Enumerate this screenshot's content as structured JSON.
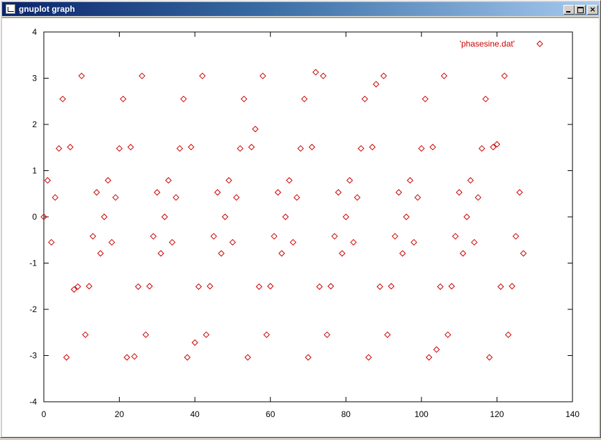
{
  "window": {
    "title": "gnuplot graph",
    "minimize_label": "",
    "maximize_label": "",
    "close_label": "×"
  },
  "colors": {
    "point": "#cc0000",
    "axis": "#000000",
    "titlebar_start": "#0a246a",
    "titlebar_end": "#a6caf0"
  },
  "chart_data": {
    "type": "scatter",
    "marker": "diamond",
    "xlim": [
      0,
      140
    ],
    "ylim": [
      -4,
      4
    ],
    "xticks": [
      0,
      20,
      40,
      60,
      80,
      100,
      120,
      140
    ],
    "yticks": [
      -4,
      -3,
      -2,
      -1,
      0,
      1,
      2,
      3,
      4
    ],
    "grid": false,
    "legend_position": "top-right",
    "series": [
      {
        "name": "'phasesine.dat'",
        "x": [
          0,
          1,
          2,
          3,
          4,
          5,
          6,
          7,
          8,
          9,
          10,
          11,
          12,
          13,
          14,
          15,
          16,
          17,
          18,
          19,
          20,
          21,
          22,
          23,
          24,
          25,
          26,
          27,
          28,
          29,
          30,
          31,
          32,
          33,
          34,
          35,
          36,
          37,
          38,
          39,
          40,
          41,
          42,
          43,
          44,
          45,
          46,
          47,
          48,
          49,
          50,
          51,
          52,
          53,
          54,
          55,
          56,
          57,
          58,
          59,
          60,
          61,
          62,
          63,
          64,
          65,
          66,
          67,
          68,
          69,
          70,
          71,
          72,
          73,
          74,
          75,
          76,
          77,
          78,
          79,
          80,
          81,
          82,
          83,
          84,
          85,
          86,
          87,
          88,
          89,
          90,
          91,
          92,
          93,
          94,
          95,
          96,
          97,
          98,
          99,
          100,
          101,
          102,
          103,
          104,
          105,
          106,
          107,
          108,
          109,
          110,
          111,
          112,
          113,
          114,
          115,
          116,
          117,
          118,
          119,
          120,
          121,
          122,
          123,
          124,
          125,
          126,
          127
        ],
        "y": [
          0,
          0.79,
          -0.55,
          0.42,
          1.48,
          2.55,
          -3.04,
          1.51,
          -1.57,
          -1.51,
          3.05,
          -2.55,
          -1.5,
          -0.42,
          0.53,
          -0.79,
          0,
          0.79,
          -0.55,
          0.42,
          1.48,
          2.55,
          -3.04,
          1.51,
          -3.02,
          -1.51,
          3.05,
          -2.55,
          -1.5,
          -0.42,
          0.53,
          -0.79,
          0,
          0.79,
          -0.55,
          0.42,
          1.48,
          2.55,
          -3.04,
          1.51,
          -2.72,
          -1.51,
          3.05,
          -2.55,
          -1.5,
          -0.42,
          0.53,
          -0.79,
          0,
          0.79,
          -0.55,
          0.42,
          1.48,
          2.55,
          -3.04,
          1.51,
          1.9,
          -1.51,
          3.05,
          -2.55,
          -1.5,
          -0.42,
          0.53,
          -0.79,
          0,
          0.79,
          -0.55,
          0.42,
          1.48,
          2.55,
          -3.04,
          1.51,
          3.13,
          -1.51,
          3.05,
          -2.55,
          -1.5,
          -0.42,
          0.53,
          -0.79,
          0,
          0.79,
          -0.55,
          0.42,
          1.48,
          2.55,
          -3.04,
          1.51,
          2.87,
          -1.51,
          3.05,
          -2.55,
          -1.5,
          -0.42,
          0.53,
          -0.79,
          0,
          0.79,
          -0.55,
          0.42,
          1.48,
          2.55,
          -3.04,
          1.51,
          -2.87,
          -1.51,
          3.05,
          -2.55,
          -1.5,
          -0.42,
          0.53,
          -0.79,
          0,
          0.79,
          -0.55,
          0.42,
          1.48,
          2.55,
          -3.04,
          1.51,
          1.57,
          -1.51,
          3.05,
          -2.55,
          -1.5,
          -0.42,
          0.53,
          -0.79
        ]
      }
    ]
  }
}
